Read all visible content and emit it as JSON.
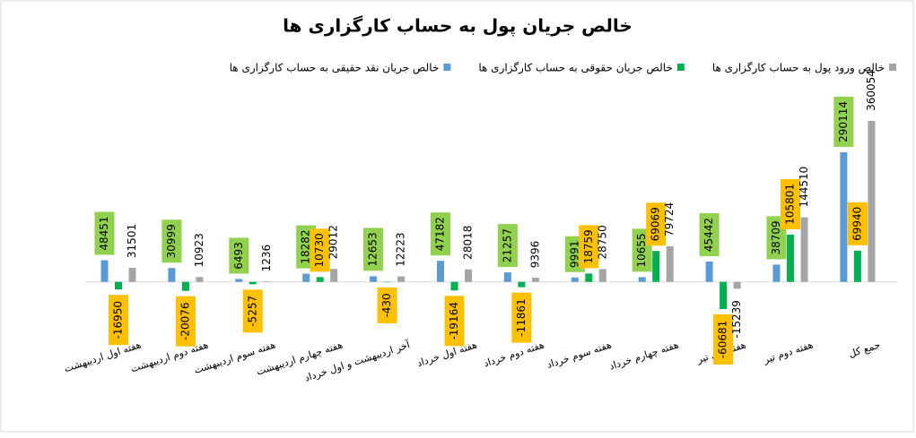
{
  "chart_data": {
    "type": "bar",
    "title": "خالص جریان پول به حساب کارگزاری ها",
    "categories": [
      "هفته اول اردیبهشت",
      "هفته دوم اردیبهشت",
      "هفته سوم اردیبهشت",
      "هفته چهارم اردیبهشت",
      "آخر اردیبهشت و اول خرداد",
      "هفته اول خرداد",
      "هفته دوم خرداد",
      "هفته سوم خرداد",
      "هفته چهارم خرداد",
      "هفته اول تیر",
      "هفته دوم تیر",
      "جمع کل"
    ],
    "series": [
      {
        "name": "خالص جریان نقد حقیقی به حساب کارگزاری ها",
        "color": "#5b9bd5",
        "label_box": "#92d050",
        "values": [
          48451,
          30999,
          6493,
          18282,
          12653,
          47182,
          21257,
          9991,
          10655,
          45442,
          38709,
          290114
        ]
      },
      {
        "name": "خالص جریان حقوقی به حساب کارگزاری ها",
        "color": "#00b050",
        "label_box": "#ffc000",
        "values": [
          -16950,
          -20076,
          -5257,
          10730,
          -430,
          -19164,
          -11861,
          18759,
          69069,
          -60681,
          105801,
          69940
        ]
      },
      {
        "name": "خالص ورود پول به حساب کارگزاری ها",
        "color": "#a5a5a5",
        "values": [
          31501,
          10923,
          1236,
          29012,
          12223,
          28018,
          9396,
          28750,
          79724,
          -15239,
          144510,
          360054
        ]
      }
    ]
  }
}
